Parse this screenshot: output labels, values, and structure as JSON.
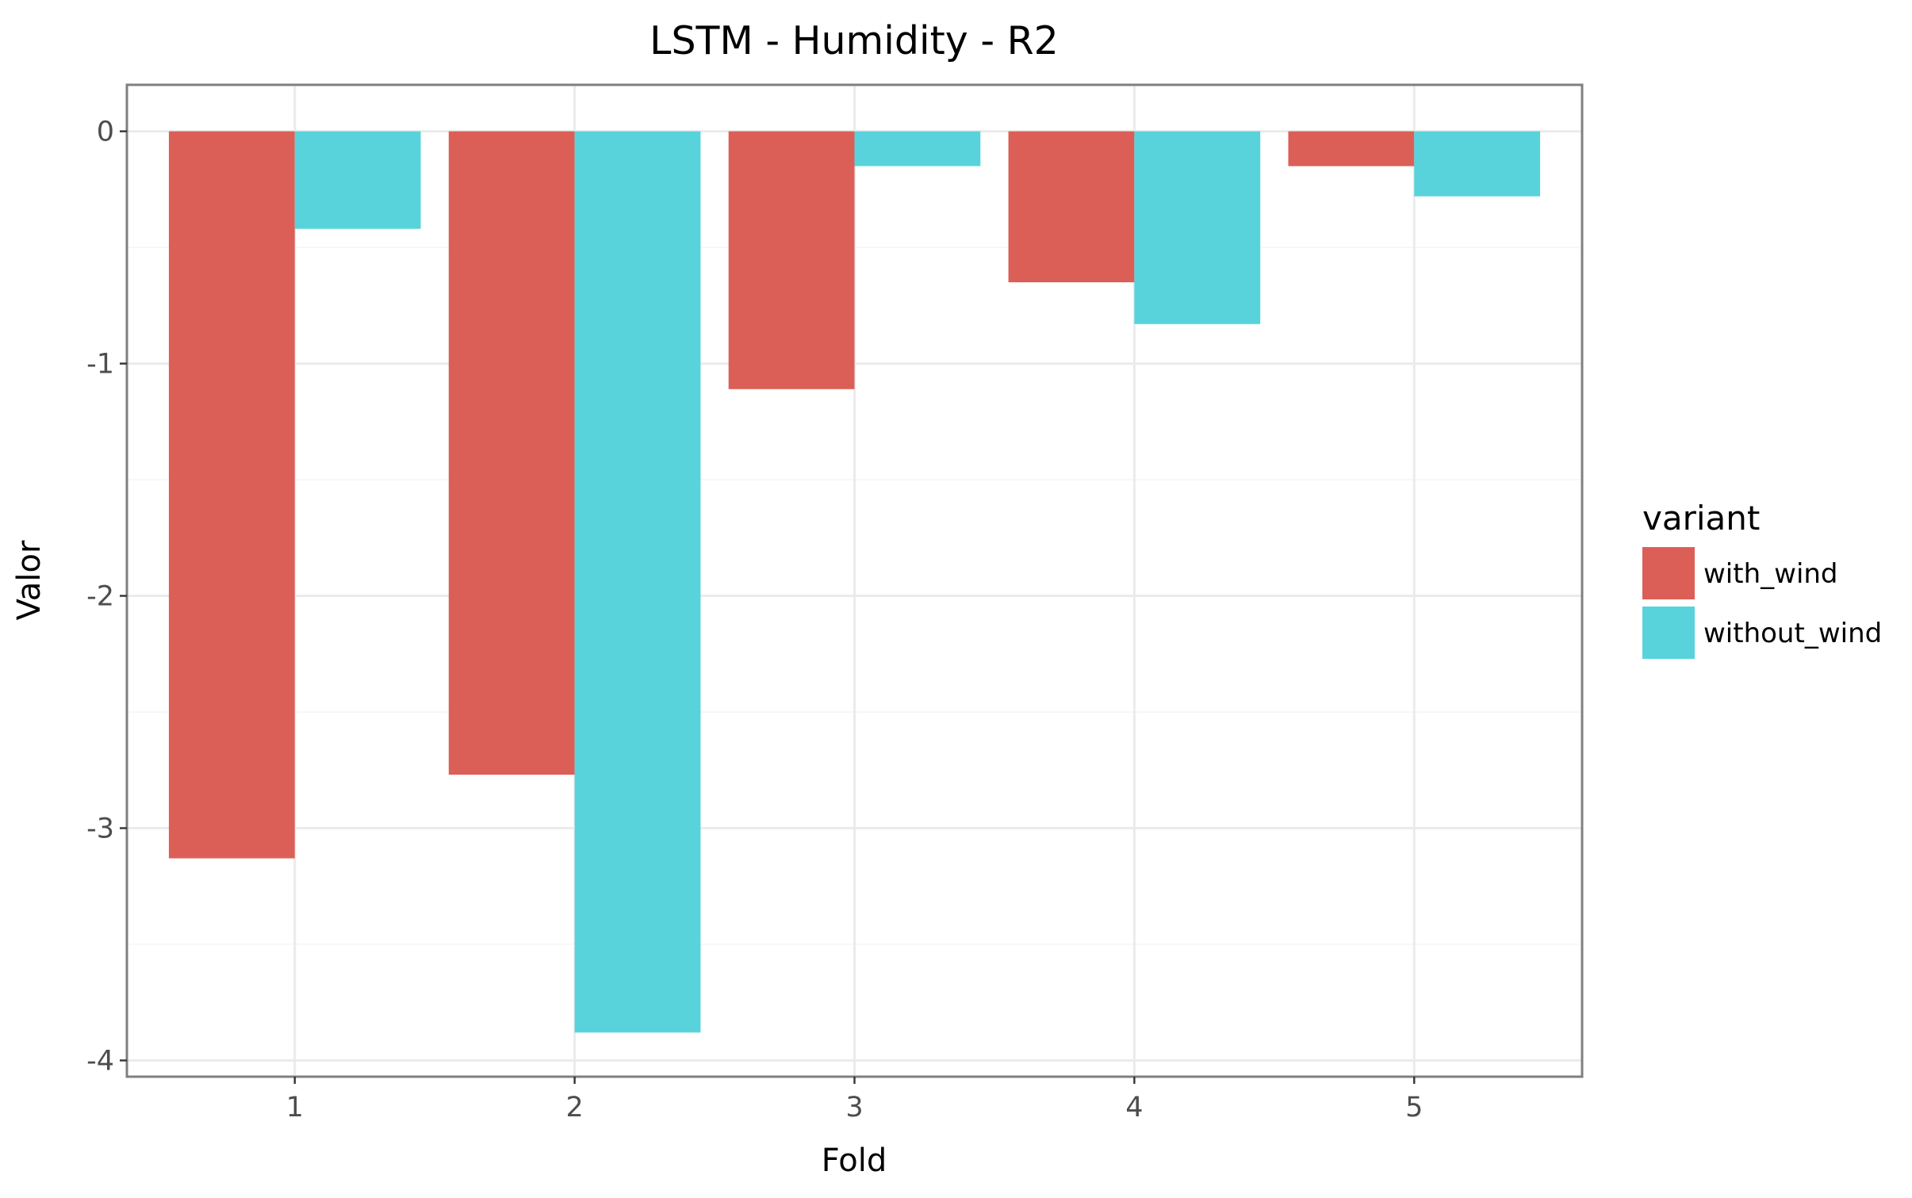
{
  "chart_data": {
    "type": "bar",
    "title": "LSTM - Humidity - R2",
    "xlabel": "Fold",
    "ylabel": "Valor",
    "categories": [
      "1",
      "2",
      "3",
      "4",
      "5"
    ],
    "series": [
      {
        "name": "with_wind",
        "color": "#dc5f57",
        "values": [
          -3.13,
          -2.77,
          -1.11,
          -0.65,
          -0.15
        ]
      },
      {
        "name": "without_wind",
        "color": "#58d3db",
        "values": [
          -0.42,
          -3.88,
          -0.15,
          -0.83,
          -0.28
        ]
      }
    ],
    "y_ticks": [
      0,
      -1,
      -2,
      -3,
      -4
    ],
    "y_tick_labels": [
      "0",
      "-1",
      "-2",
      "-3",
      "-4"
    ],
    "ylim": [
      -4.07,
      0.2
    ],
    "grid": true,
    "legend": {
      "title": "variant",
      "position": "right"
    }
  }
}
